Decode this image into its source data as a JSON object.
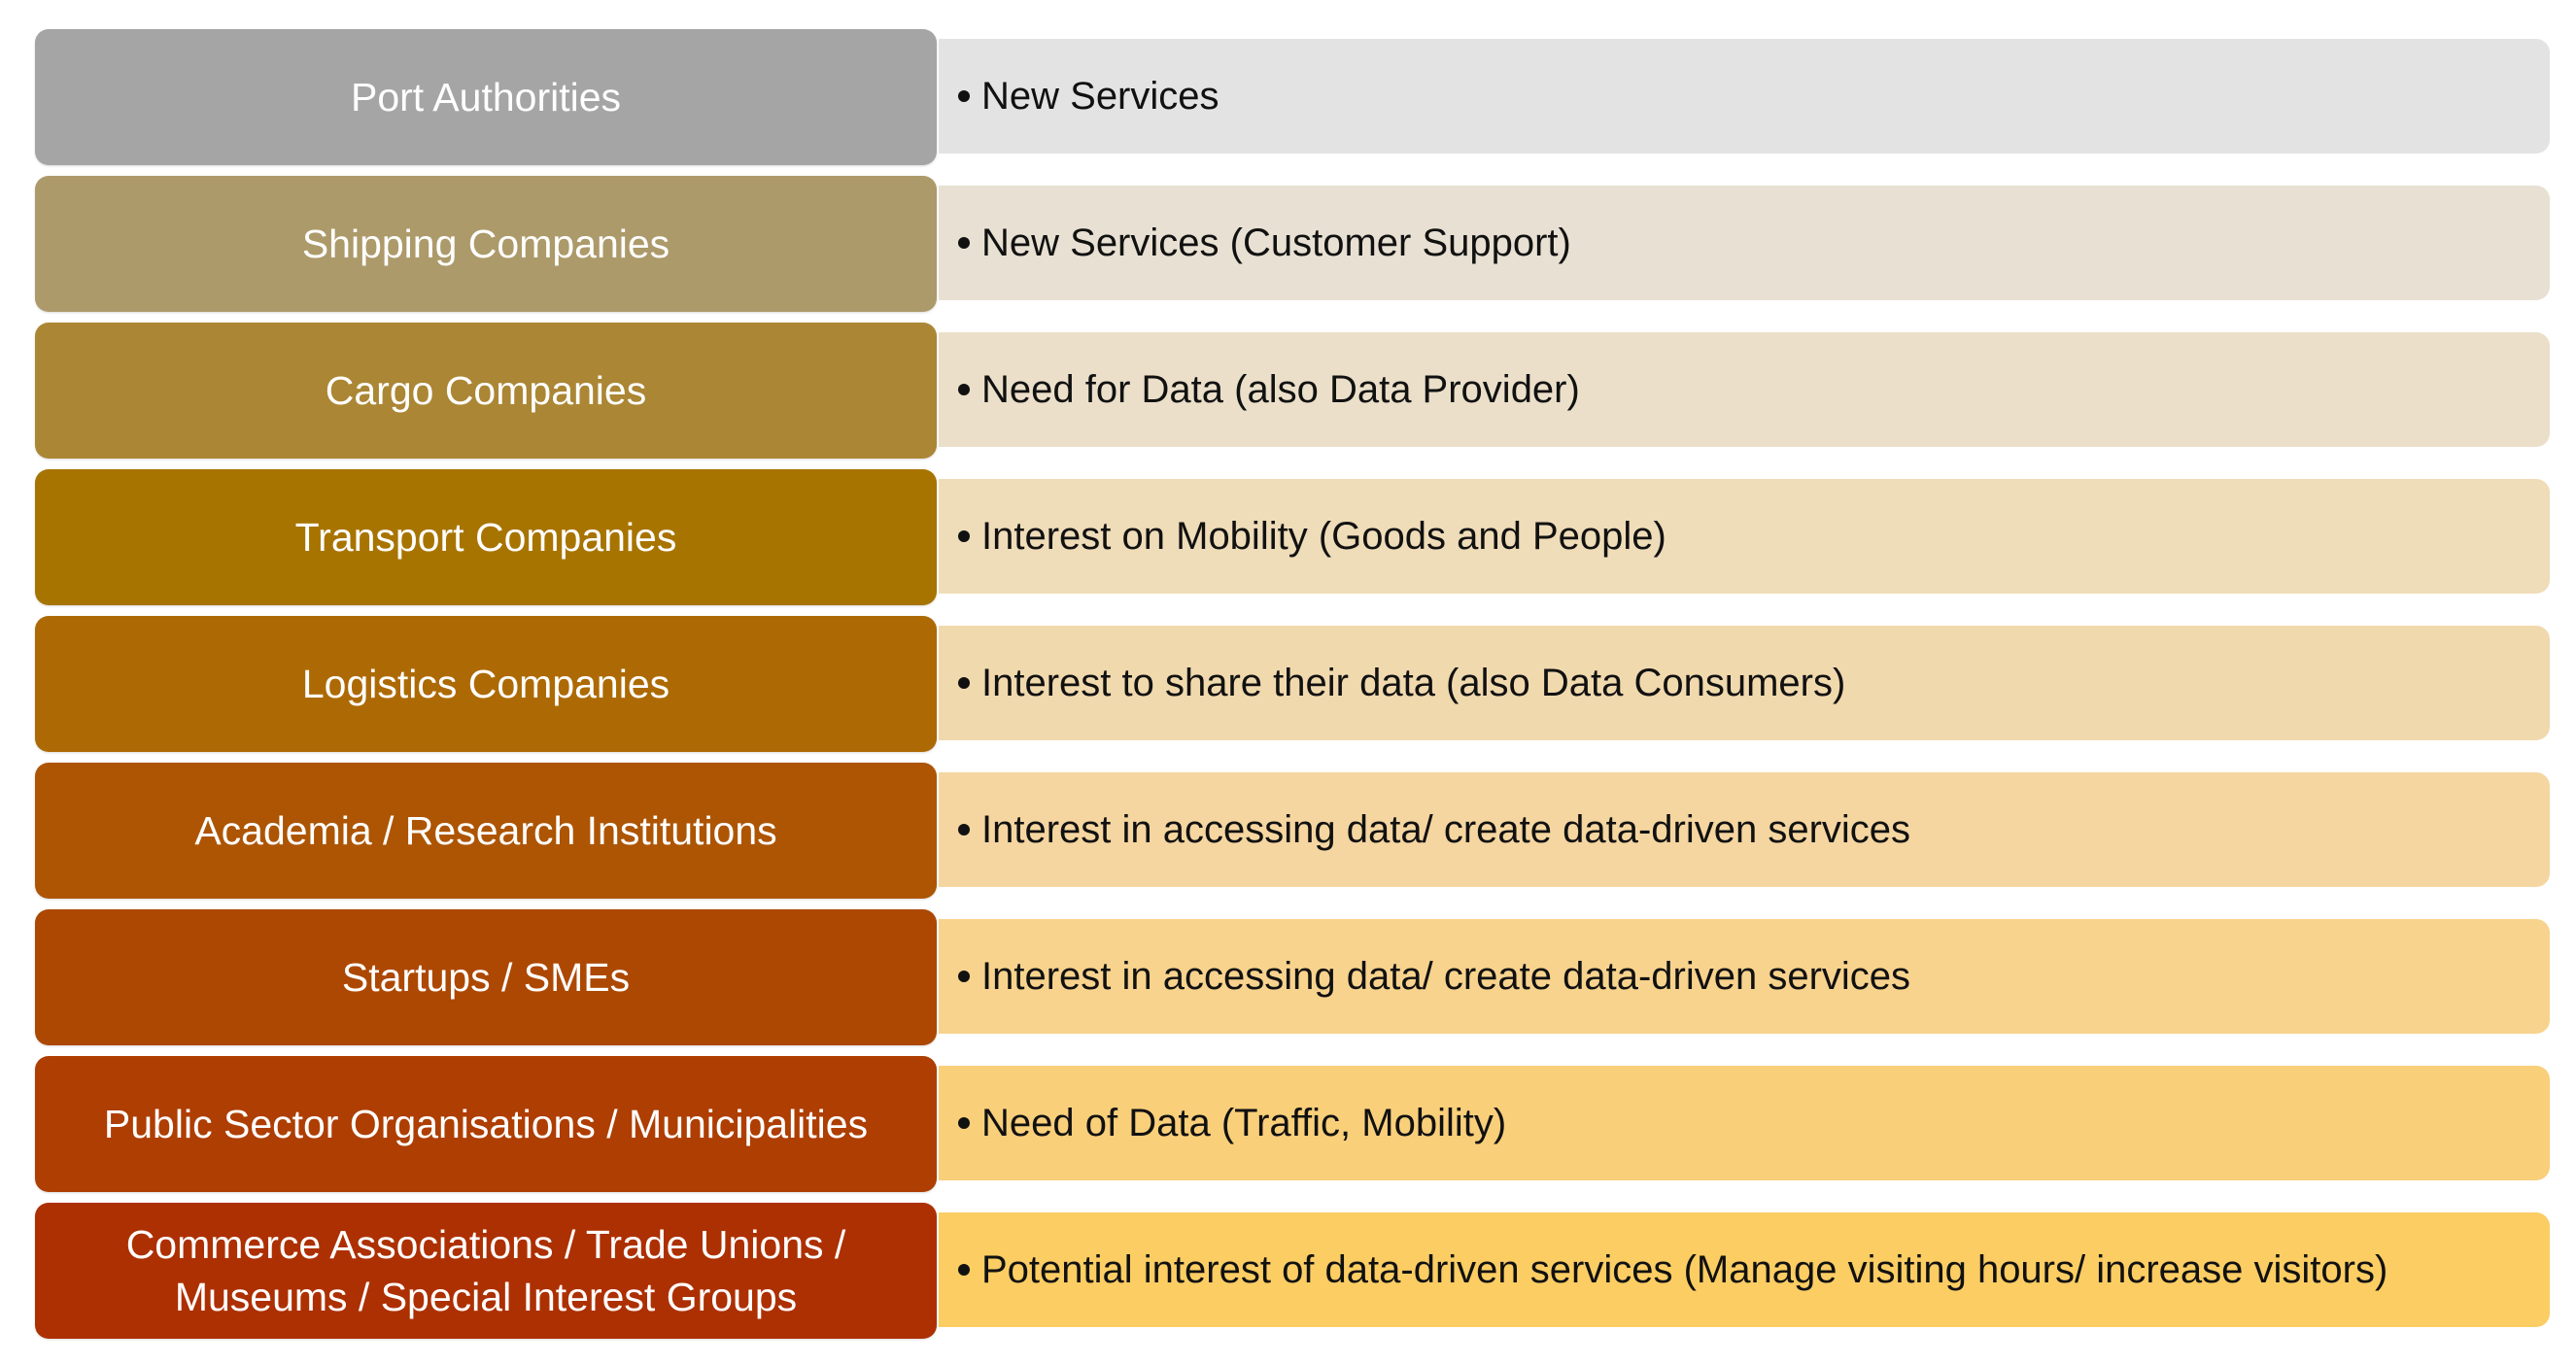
{
  "rows": [
    {
      "label": "Port Authorities",
      "detail": "New Services",
      "label_color": "#a5a5a5",
      "detail_color": "#e3e3e3"
    },
    {
      "label": "Shipping Companies",
      "detail": "New Services (Customer Support)",
      "label_color": "#ad9a6a",
      "detail_color": "#e8e0d2"
    },
    {
      "label": "Cargo Companies",
      "detail": "Need for Data (also Data Provider)",
      "label_color": "#ab8634",
      "detail_color": "#ebdfc9"
    },
    {
      "label": "Transport Companies",
      "detail": "Interest on Mobility (Goods and People)",
      "label_color": "#a87400",
      "detail_color": "#efdcb8"
    },
    {
      "label": "Logistics Companies",
      "detail": "Interest to share their data (also Data Consumers)",
      "label_color": "#ad6a04",
      "detail_color": "#f1d9ae"
    },
    {
      "label": "Academia / Research Institutions",
      "detail": "Interest in accessing data/ create data-driven services",
      "label_color": "#ad5503",
      "detail_color": "#f5d6a0"
    },
    {
      "label": "Startups / SMEs",
      "detail": "Interest in accessing data/ create data-driven services",
      "label_color": "#ad4802",
      "detail_color": "#f8d38d"
    },
    {
      "label": "Public Sector Organisations / Municipalities",
      "detail": "Need of Data (Traffic, Mobility)",
      "label_color": "#ae3e02",
      "detail_color": "#f9cf7a"
    },
    {
      "label": "Commerce Associations / Trade Unions / Museums / Special Interest Groups",
      "detail": "Potential interest of data-driven services (Manage visiting hours/ increase visitors)",
      "label_color": "#ad3002",
      "detail_color": "#fbcd63"
    }
  ]
}
